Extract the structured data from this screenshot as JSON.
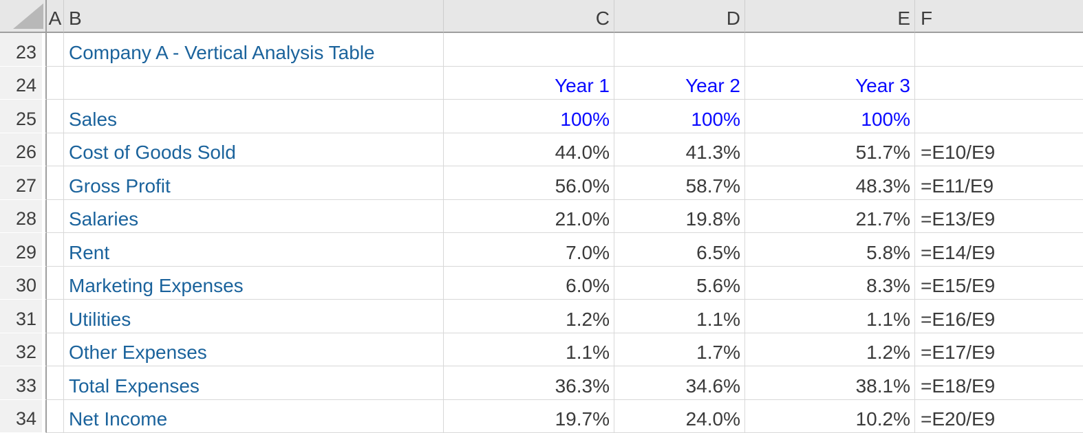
{
  "app": "spreadsheet",
  "colors": {
    "label_blue": "#1B639C",
    "bright_blue": "#0A0AFF",
    "value_dark": "#3B3B3B",
    "grid": "#D8D8D8",
    "header_bg": "#E7E7E7",
    "gutter_bg": "#F1F1F1",
    "dark_line": "#9E9E9E"
  },
  "header": {
    "corner_icon": "select-all-triangle",
    "columns": [
      "A",
      "B",
      "C",
      "D",
      "E",
      "F"
    ]
  },
  "table": {
    "title": "Company A - Vertical Analysis Table",
    "year_headers": [
      "Year 1",
      "Year 2",
      "Year 3"
    ]
  },
  "rows": [
    {
      "num": "23",
      "type": "title",
      "b": "Company A - Vertical Analysis Table",
      "c": "",
      "d": "",
      "e": "",
      "f": ""
    },
    {
      "num": "24",
      "type": "year-header",
      "b": "",
      "c": "Year 1",
      "d": "Year 2",
      "e": "Year 3",
      "f": ""
    },
    {
      "num": "25",
      "type": "base-100",
      "b": "Sales",
      "c": "100%",
      "d": "100%",
      "e": "100%",
      "f": ""
    },
    {
      "num": "26",
      "type": "data",
      "b": "Cost of Goods Sold",
      "c": "44.0%",
      "d": "41.3%",
      "e": "51.7%",
      "f": "=E10/E9"
    },
    {
      "num": "27",
      "type": "data",
      "b": "Gross Profit",
      "c": "56.0%",
      "d": "58.7%",
      "e": "48.3%",
      "f": "=E11/E9"
    },
    {
      "num": "28",
      "type": "data",
      "b": "Salaries",
      "c": "21.0%",
      "d": "19.8%",
      "e": "21.7%",
      "f": "=E13/E9"
    },
    {
      "num": "29",
      "type": "data",
      "b": "Rent",
      "c": "7.0%",
      "d": "6.5%",
      "e": "5.8%",
      "f": "=E14/E9"
    },
    {
      "num": "30",
      "type": "data",
      "b": "Marketing Expenses",
      "c": "6.0%",
      "d": "5.6%",
      "e": "8.3%",
      "f": "=E15/E9"
    },
    {
      "num": "31",
      "type": "data",
      "b": "Utilities",
      "c": "1.2%",
      "d": "1.1%",
      "e": "1.1%",
      "f": "=E16/E9"
    },
    {
      "num": "32",
      "type": "data",
      "b": "Other Expenses",
      "c": "1.1%",
      "d": "1.7%",
      "e": "1.2%",
      "f": "=E17/E9"
    },
    {
      "num": "33",
      "type": "data",
      "b": "Total Expenses",
      "c": "36.3%",
      "d": "34.6%",
      "e": "38.1%",
      "f": "=E18/E9"
    },
    {
      "num": "34",
      "type": "data",
      "b": "Net Income",
      "c": "19.7%",
      "d": "24.0%",
      "e": "10.2%",
      "f": "=E20/E9"
    }
  ]
}
